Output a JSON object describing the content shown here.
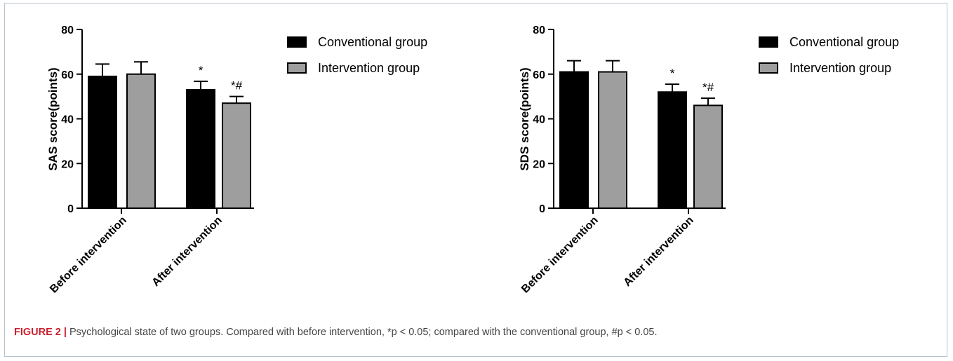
{
  "figure": {
    "caption_label": "FIGURE 2 |",
    "caption_text": " Psychological state of two groups. Compared with before intervention, *p < 0.05; compared with the conventional group, #p < 0.05."
  },
  "colors": {
    "conventional": "#000000",
    "intervention": "#9e9e9e",
    "accent": "#c8202f"
  },
  "chart_data": [
    {
      "type": "bar",
      "ylabel": "SAS score(points)",
      "ylim": [
        0,
        80
      ],
      "yticks": [
        0,
        20,
        40,
        60,
        80
      ],
      "categories": [
        "Before intervention",
        "After intervention"
      ],
      "series": [
        {
          "name": "Conventional group",
          "values": [
            59,
            53
          ],
          "errors": [
            5.5,
            3.8
          ],
          "annotations": [
            "",
            "*"
          ]
        },
        {
          "name": "Intervention group",
          "values": [
            60,
            47
          ],
          "errors": [
            5.5,
            3.0
          ],
          "annotations": [
            "",
            "*#"
          ]
        }
      ],
      "legend": "top-right",
      "grid": false
    },
    {
      "type": "bar",
      "ylabel": "SDS score(points)",
      "ylim": [
        0,
        80
      ],
      "yticks": [
        0,
        20,
        40,
        60,
        80
      ],
      "categories": [
        "Before intervention",
        "After intervention"
      ],
      "series": [
        {
          "name": "Conventional group",
          "values": [
            61,
            52
          ],
          "errors": [
            5.0,
            3.5
          ],
          "annotations": [
            "",
            "*"
          ]
        },
        {
          "name": "Intervention group",
          "values": [
            61,
            46
          ],
          "errors": [
            5.0,
            3.2
          ],
          "annotations": [
            "",
            "*#"
          ]
        }
      ],
      "legend": "top-right",
      "grid": false
    }
  ]
}
